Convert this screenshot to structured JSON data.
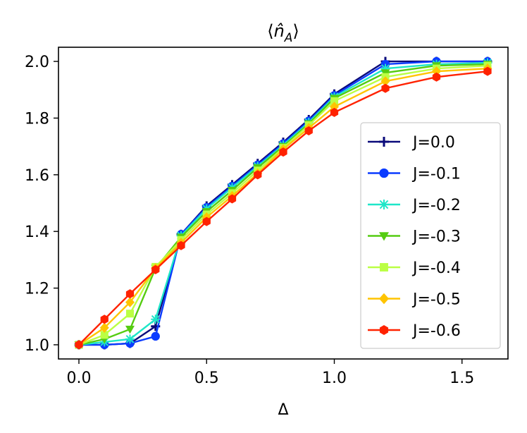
{
  "chart_data": {
    "type": "line",
    "title": "⟨n̂A⟩",
    "title_parts": {
      "open": "⟨",
      "symbol": "n̂",
      "subscript": "A",
      "close": "⟩"
    },
    "xlabel": "Δ",
    "ylabel": "",
    "xlim": [
      -0.08,
      1.68
    ],
    "ylim": [
      0.95,
      2.05
    ],
    "xticks": [
      0.0,
      0.5,
      1.0,
      1.5
    ],
    "xtick_labels": [
      "0.0",
      "0.5",
      "1.0",
      "1.5"
    ],
    "yticks": [
      1.0,
      1.2,
      1.4,
      1.6,
      1.8,
      2.0
    ],
    "ytick_labels": [
      "1.0",
      "1.2",
      "1.4",
      "1.6",
      "1.8",
      "2.0"
    ],
    "grid": false,
    "legend_position": "center-right",
    "x": [
      0.0,
      0.1,
      0.2,
      0.3,
      0.4,
      0.5,
      0.6,
      0.7,
      0.8,
      0.9,
      1.0,
      1.2,
      1.4,
      1.6
    ],
    "series": [
      {
        "name": "J=0.0",
        "color": "#0a0a7a",
        "marker": "plus",
        "values": [
          1.0,
          1.0,
          1.005,
          1.065,
          1.39,
          1.49,
          1.565,
          1.64,
          1.715,
          1.795,
          1.885,
          2.0,
          2.0,
          2.0
        ]
      },
      {
        "name": "J=-0.1",
        "color": "#0b3bff",
        "marker": "circle",
        "values": [
          1.0,
          1.0,
          1.005,
          1.03,
          1.39,
          1.485,
          1.56,
          1.635,
          1.71,
          1.79,
          1.88,
          1.99,
          2.0,
          2.0
        ]
      },
      {
        "name": "J=-0.2",
        "color": "#1ee6c8",
        "marker": "x",
        "values": [
          1.0,
          1.01,
          1.02,
          1.09,
          1.385,
          1.48,
          1.555,
          1.63,
          1.705,
          1.785,
          1.875,
          1.975,
          1.99,
          1.995
        ]
      },
      {
        "name": "J=-0.3",
        "color": "#55cc11",
        "marker": "triangle-down",
        "values": [
          1.0,
          1.02,
          1.055,
          1.27,
          1.38,
          1.47,
          1.545,
          1.625,
          1.7,
          1.78,
          1.87,
          1.96,
          1.985,
          1.99
        ]
      },
      {
        "name": "J=-0.4",
        "color": "#bbff44",
        "marker": "square",
        "values": [
          1.0,
          1.035,
          1.11,
          1.275,
          1.37,
          1.46,
          1.535,
          1.615,
          1.695,
          1.775,
          1.86,
          1.945,
          1.975,
          1.985
        ]
      },
      {
        "name": "J=-0.5",
        "color": "#ffc400",
        "marker": "diamond",
        "values": [
          1.0,
          1.06,
          1.15,
          1.27,
          1.36,
          1.45,
          1.525,
          1.605,
          1.69,
          1.765,
          1.84,
          1.93,
          1.965,
          1.975
        ]
      },
      {
        "name": "J=-0.6",
        "color": "#ff2200",
        "marker": "hexagon",
        "values": [
          1.0,
          1.09,
          1.18,
          1.265,
          1.35,
          1.435,
          1.515,
          1.6,
          1.68,
          1.755,
          1.82,
          1.905,
          1.945,
          1.965
        ]
      }
    ]
  }
}
